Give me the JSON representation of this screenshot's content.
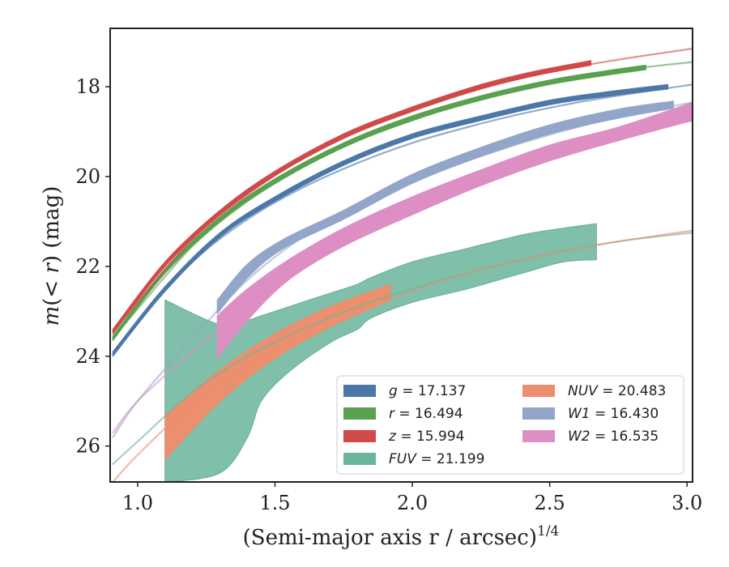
{
  "chart_data": {
    "type": "line",
    "xlabel_main": "(Semi-major axis r / arcsec)",
    "xlabel_sup": "1/4",
    "ylabel": "m(< r) (mag)",
    "xlim": [
      0.9,
      3.02
    ],
    "ylim": [
      26.8,
      16.7
    ],
    "y_inverted": true,
    "grid": false,
    "x_ticks": [
      {
        "v": 1.0,
        "label": "1.0"
      },
      {
        "v": 1.5,
        "label": "1.5"
      },
      {
        "v": 2.0,
        "label": "2.0"
      },
      {
        "v": 2.5,
        "label": "2.5"
      },
      {
        "v": 3.0,
        "label": "3.0"
      }
    ],
    "y_ticks": [
      {
        "v": 18,
        "label": "18"
      },
      {
        "v": 20,
        "label": "20"
      },
      {
        "v": 22,
        "label": "22"
      },
      {
        "v": 24,
        "label": "24"
      },
      {
        "v": 26,
        "label": "26"
      }
    ],
    "legend_position": "lower-right",
    "series": [
      {
        "name": "g = 17.137",
        "legend_symbol": "g",
        "legend_value": "17.137",
        "color": "#4c78a8",
        "band": [
          [
            0.91,
            24.0,
            23.9
          ],
          [
            1.1,
            22.55,
            22.45
          ],
          [
            1.3,
            21.35,
            21.25
          ],
          [
            1.5,
            20.55,
            20.45
          ],
          [
            1.75,
            19.75,
            19.65
          ],
          [
            2.0,
            19.15,
            19.05
          ],
          [
            2.25,
            18.75,
            18.65
          ],
          [
            2.5,
            18.4,
            18.3
          ],
          [
            2.7,
            18.22,
            18.12
          ],
          [
            2.93,
            18.05,
            17.95
          ]
        ],
        "model": [
          [
            0.91,
            23.95
          ],
          [
            1.0,
            23.25
          ],
          [
            1.2,
            21.9
          ],
          [
            1.4,
            20.95
          ],
          [
            1.6,
            20.25
          ],
          [
            1.8,
            19.7
          ],
          [
            2.0,
            19.25
          ],
          [
            2.2,
            18.9
          ],
          [
            2.4,
            18.6
          ],
          [
            2.6,
            18.35
          ],
          [
            2.8,
            18.15
          ],
          [
            3.02,
            17.95
          ]
        ]
      },
      {
        "name": "r = 16.494",
        "legend_symbol": "r",
        "legend_value": "16.494",
        "color": "#59a14f",
        "band": [
          [
            0.91,
            23.65,
            23.55
          ],
          [
            1.1,
            22.15,
            22.05
          ],
          [
            1.3,
            21.0,
            20.9
          ],
          [
            1.5,
            20.15,
            20.05
          ],
          [
            1.75,
            19.35,
            19.25
          ],
          [
            2.0,
            18.75,
            18.65
          ],
          [
            2.25,
            18.3,
            18.2
          ],
          [
            2.5,
            17.95,
            17.85
          ],
          [
            2.7,
            17.75,
            17.65
          ],
          [
            2.85,
            17.62,
            17.52
          ]
        ],
        "model": [
          [
            0.91,
            23.6
          ],
          [
            1.0,
            22.95
          ],
          [
            1.2,
            21.55
          ],
          [
            1.4,
            20.55
          ],
          [
            1.6,
            19.8
          ],
          [
            1.8,
            19.2
          ],
          [
            2.0,
            18.75
          ],
          [
            2.2,
            18.35
          ],
          [
            2.4,
            18.05
          ],
          [
            2.6,
            17.8
          ],
          [
            2.8,
            17.6
          ],
          [
            3.02,
            17.45
          ]
        ]
      },
      {
        "name": "z = 15.994",
        "legend_symbol": "z",
        "legend_value": "15.994",
        "color": "#d04a4a",
        "band": [
          [
            0.91,
            23.5,
            23.4
          ],
          [
            1.1,
            22.0,
            21.9
          ],
          [
            1.3,
            20.85,
            20.75
          ],
          [
            1.5,
            19.98,
            19.88
          ],
          [
            1.75,
            19.15,
            19.05
          ],
          [
            2.0,
            18.55,
            18.45
          ],
          [
            2.25,
            18.05,
            17.95
          ],
          [
            2.45,
            17.75,
            17.65
          ],
          [
            2.65,
            17.52,
            17.42
          ]
        ],
        "model": [
          [
            0.91,
            23.45
          ],
          [
            1.0,
            22.8
          ],
          [
            1.2,
            21.4
          ],
          [
            1.4,
            20.4
          ],
          [
            1.6,
            19.6
          ],
          [
            1.8,
            19.0
          ],
          [
            2.0,
            18.5
          ],
          [
            2.2,
            18.1
          ],
          [
            2.4,
            17.8
          ],
          [
            2.6,
            17.55
          ],
          [
            2.8,
            17.35
          ],
          [
            3.02,
            17.15
          ]
        ]
      },
      {
        "name": "FUV = 21.199",
        "legend_symbol": "FUV",
        "legend_value": "21.199",
        "color": "#6ab49a",
        "band": [
          [
            1.1,
            26.8,
            22.75
          ],
          [
            1.3,
            26.6,
            23.3
          ],
          [
            1.4,
            25.8,
            23.2
          ],
          [
            1.45,
            25.0,
            23.1
          ],
          [
            1.55,
            24.35,
            22.9
          ],
          [
            1.7,
            23.7,
            22.6
          ],
          [
            1.8,
            23.4,
            22.4
          ],
          [
            1.85,
            23.15,
            22.25
          ],
          [
            2.0,
            22.8,
            21.9
          ],
          [
            2.2,
            22.5,
            21.6
          ],
          [
            2.4,
            22.15,
            21.3
          ],
          [
            2.55,
            21.9,
            21.15
          ],
          [
            2.67,
            21.85,
            21.05
          ]
        ],
        "model": [
          [
            0.91,
            26.4
          ],
          [
            1.0,
            25.9
          ],
          [
            1.2,
            24.8
          ],
          [
            1.4,
            24.0
          ],
          [
            1.6,
            23.4
          ],
          [
            1.8,
            22.9
          ],
          [
            2.0,
            22.5
          ],
          [
            2.2,
            22.15
          ],
          [
            2.4,
            21.85
          ],
          [
            2.6,
            21.6
          ],
          [
            2.8,
            21.4
          ],
          [
            3.02,
            21.25
          ]
        ]
      },
      {
        "name": "NUV = 20.483",
        "legend_symbol": "NUV",
        "legend_value": "20.483",
        "color": "#eb8f6f",
        "band": [
          [
            1.1,
            26.3,
            25.3
          ],
          [
            1.3,
            25.0,
            24.3
          ],
          [
            1.5,
            24.05,
            23.5
          ],
          [
            1.7,
            23.35,
            22.9
          ],
          [
            1.92,
            22.75,
            22.4
          ]
        ],
        "model": [
          [
            0.91,
            26.8
          ],
          [
            1.0,
            26.2
          ],
          [
            1.2,
            25.05
          ],
          [
            1.4,
            24.2
          ],
          [
            1.6,
            23.55
          ],
          [
            1.8,
            23.0
          ],
          [
            2.0,
            22.55
          ],
          [
            2.2,
            22.15
          ],
          [
            2.4,
            21.85
          ],
          [
            2.6,
            21.6
          ],
          [
            2.8,
            21.4
          ],
          [
            3.02,
            21.2
          ]
        ]
      },
      {
        "name": "W1 = 16.430",
        "legend_symbol": "W1",
        "legend_value": "16.430",
        "color": "#93a5c8",
        "band": [
          [
            1.29,
            23.05,
            22.75
          ],
          [
            1.4,
            22.25,
            21.95
          ],
          [
            1.53,
            21.6,
            21.4
          ],
          [
            1.75,
            20.95,
            20.75
          ],
          [
            2.0,
            20.15,
            19.95
          ],
          [
            2.25,
            19.55,
            19.35
          ],
          [
            2.5,
            19.05,
            18.85
          ],
          [
            2.75,
            18.7,
            18.5
          ],
          [
            2.95,
            18.48,
            18.32
          ]
        ],
        "model": [
          [
            0.91,
            25.8
          ],
          [
            1.0,
            25.0
          ],
          [
            1.2,
            23.6
          ],
          [
            1.4,
            22.3
          ],
          [
            1.6,
            21.35
          ],
          [
            1.8,
            20.65
          ],
          [
            2.0,
            20.1
          ],
          [
            2.2,
            19.65
          ],
          [
            2.4,
            19.25
          ],
          [
            2.6,
            18.9
          ],
          [
            2.8,
            18.6
          ],
          [
            3.02,
            18.35
          ]
        ]
      },
      {
        "name": "W2 = 16.535",
        "legend_symbol": "W2",
        "legend_value": "16.535",
        "color": "#dd8fc4",
        "band": [
          [
            1.29,
            24.05,
            23.1
          ],
          [
            1.4,
            23.2,
            22.5
          ],
          [
            1.55,
            22.3,
            21.85
          ],
          [
            1.75,
            21.55,
            21.15
          ],
          [
            2.0,
            20.85,
            20.45
          ],
          [
            2.25,
            20.2,
            19.85
          ],
          [
            2.5,
            19.65,
            19.3
          ],
          [
            2.75,
            19.2,
            18.9
          ],
          [
            3.02,
            18.75,
            18.35
          ]
        ],
        "model": [
          [
            0.91,
            25.7
          ],
          [
            1.0,
            25.0
          ],
          [
            1.2,
            23.9
          ],
          [
            1.4,
            22.9
          ],
          [
            1.6,
            22.05
          ],
          [
            1.8,
            21.35
          ],
          [
            2.0,
            20.75
          ],
          [
            2.2,
            20.25
          ],
          [
            2.4,
            19.8
          ],
          [
            2.6,
            19.4
          ],
          [
            2.8,
            19.05
          ],
          [
            3.02,
            18.75
          ]
        ]
      }
    ]
  }
}
